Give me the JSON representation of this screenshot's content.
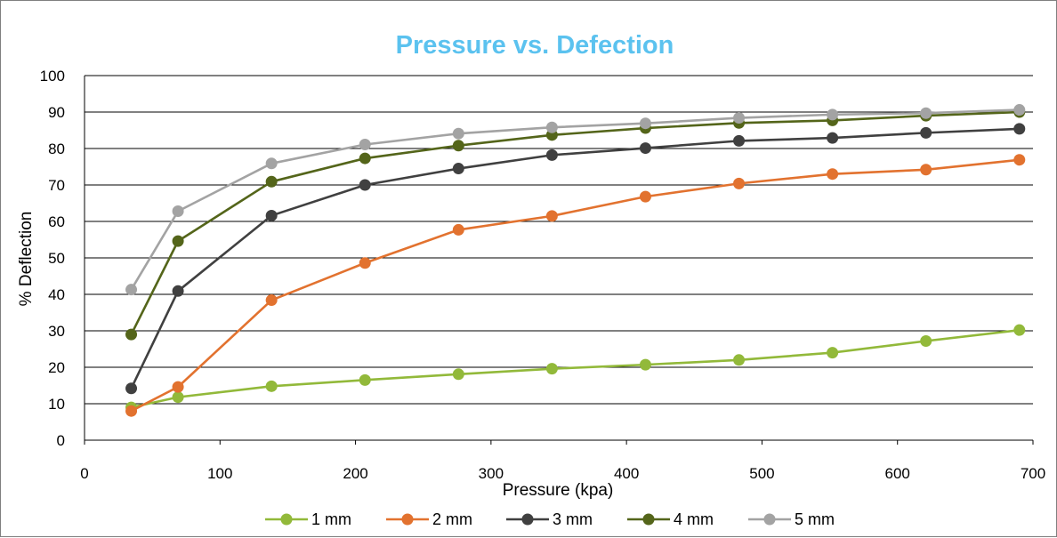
{
  "chart_data": {
    "type": "line",
    "title": "Pressure vs. Defection",
    "xlabel": "Pressure (kpa)",
    "ylabel": "% Deflection",
    "xlim": [
      0,
      700
    ],
    "ylim": [
      0,
      100
    ],
    "xticks": [
      0,
      100,
      200,
      300,
      400,
      500,
      600,
      700
    ],
    "yticks": [
      0,
      10,
      20,
      30,
      40,
      50,
      60,
      70,
      80,
      90,
      100
    ],
    "x": [
      34.5,
      69,
      138,
      207,
      276,
      345,
      414,
      483,
      552,
      621,
      690
    ],
    "grid": "horizontal",
    "legend_position": "bottom",
    "title_color": "#5bc2ef",
    "series": [
      {
        "name": "1 mm",
        "color": "#92b93a",
        "values": [
          9,
          11.8,
          14.8,
          16.5,
          18.1,
          19.6,
          20.7,
          22,
          24,
          27.2,
          30.2
        ]
      },
      {
        "name": "2 mm",
        "color": "#e2722f",
        "values": [
          8,
          14.6,
          38.4,
          48.6,
          57.7,
          61.5,
          66.8,
          70.4,
          73,
          74.2,
          76.9
        ]
      },
      {
        "name": "3 mm",
        "color": "#404040",
        "values": [
          14.2,
          40.9,
          61.6,
          70,
          74.5,
          78.2,
          80.1,
          82.1,
          82.9,
          84.3,
          85.4
        ]
      },
      {
        "name": "4 mm",
        "color": "#54651a",
        "values": [
          29,
          54.6,
          70.9,
          77.3,
          80.8,
          83.7,
          85.6,
          87,
          87.7,
          89,
          90
        ]
      },
      {
        "name": "5 mm",
        "color": "#a3a3a3",
        "values": [
          41.3,
          62.8,
          75.9,
          81.1,
          84.1,
          85.8,
          86.9,
          88.4,
          89.3,
          89.7,
          90.6
        ]
      }
    ]
  }
}
